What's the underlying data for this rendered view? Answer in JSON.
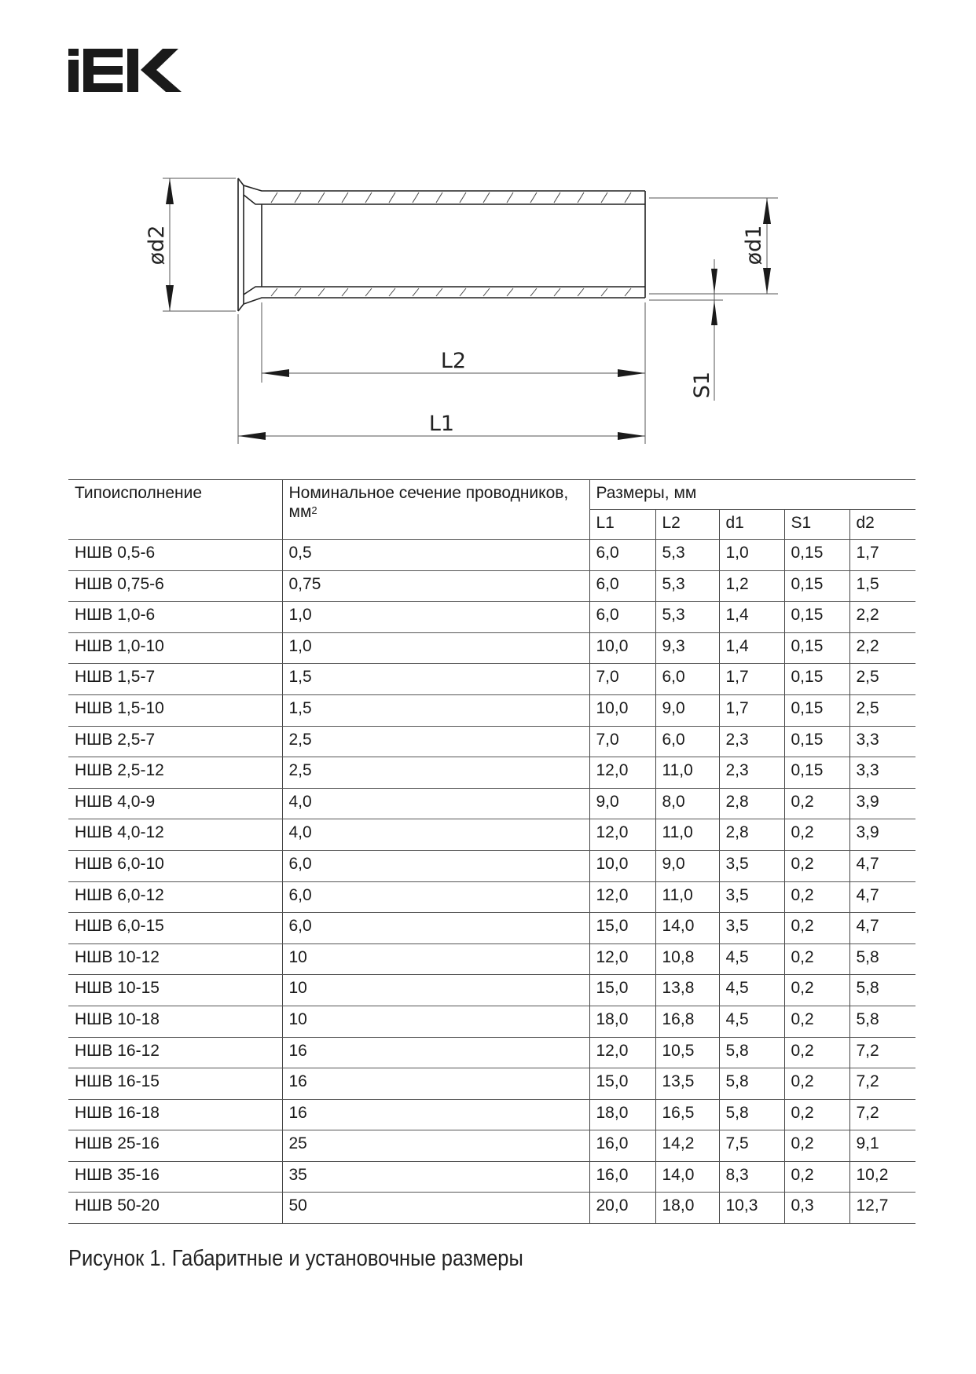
{
  "logo": {
    "text": "IEK",
    "color": "#1a1a1a"
  },
  "drawing": {
    "labels": {
      "d2": "ød2",
      "d1": "ød1",
      "s1": "S1",
      "l2": "L2",
      "l1": "L1"
    }
  },
  "table": {
    "headers": {
      "type": "Типоисполнение",
      "section": "Номинальное сечение проводников, мм",
      "section_sup": "2",
      "dimensions": "Размеры, мм",
      "sub": [
        "L1",
        "L2",
        "d1",
        "S1",
        "d2"
      ]
    },
    "rows": [
      [
        "НШВ 0,5-6",
        "0,5",
        "6,0",
        "5,3",
        "1,0",
        "0,15",
        "1,7"
      ],
      [
        "НШВ 0,75-6",
        "0,75",
        "6,0",
        "5,3",
        "1,2",
        "0,15",
        "1,5"
      ],
      [
        "НШВ 1,0-6",
        "1,0",
        "6,0",
        "5,3",
        "1,4",
        "0,15",
        "2,2"
      ],
      [
        "НШВ 1,0-10",
        "1,0",
        "10,0",
        "9,3",
        "1,4",
        "0,15",
        "2,2"
      ],
      [
        "НШВ 1,5-7",
        "1,5",
        "7,0",
        "6,0",
        "1,7",
        "0,15",
        "2,5"
      ],
      [
        "НШВ 1,5-10",
        "1,5",
        "10,0",
        "9,0",
        "1,7",
        "0,15",
        "2,5"
      ],
      [
        "НШВ 2,5-7",
        "2,5",
        "7,0",
        "6,0",
        "2,3",
        "0,15",
        "3,3"
      ],
      [
        "НШВ 2,5-12",
        "2,5",
        "12,0",
        "11,0",
        "2,3",
        "0,15",
        "3,3"
      ],
      [
        "НШВ 4,0-9",
        "4,0",
        "9,0",
        "8,0",
        "2,8",
        "0,2",
        "3,9"
      ],
      [
        "НШВ 4,0-12",
        "4,0",
        "12,0",
        "11,0",
        "2,8",
        "0,2",
        "3,9"
      ],
      [
        "НШВ 6,0-10",
        "6,0",
        "10,0",
        "9,0",
        "3,5",
        "0,2",
        "4,7"
      ],
      [
        "НШВ 6,0-12",
        "6,0",
        "12,0",
        "11,0",
        "3,5",
        "0,2",
        "4,7"
      ],
      [
        "НШВ 6,0-15",
        "6,0",
        "15,0",
        "14,0",
        "3,5",
        "0,2",
        "4,7"
      ],
      [
        "НШВ 10-12",
        "10",
        "12,0",
        "10,8",
        "4,5",
        "0,2",
        "5,8"
      ],
      [
        "НШВ 10-15",
        "10",
        "15,0",
        "13,8",
        "4,5",
        "0,2",
        "5,8"
      ],
      [
        "НШВ 10-18",
        "10",
        "18,0",
        "16,8",
        "4,5",
        "0,2",
        "5,8"
      ],
      [
        "НШВ 16-12",
        "16",
        "12,0",
        "10,5",
        "5,8",
        "0,2",
        "7,2"
      ],
      [
        "НШВ 16-15",
        "16",
        "15,0",
        "13,5",
        "5,8",
        "0,2",
        "7,2"
      ],
      [
        "НШВ 16-18",
        "16",
        "18,0",
        "16,5",
        "5,8",
        "0,2",
        "7,2"
      ],
      [
        "НШВ 25-16",
        "25",
        "16,0",
        "14,2",
        "7,5",
        "0,2",
        "9,1"
      ],
      [
        "НШВ 35-16",
        "35",
        "16,0",
        "14,0",
        "8,3",
        "0,2",
        "10,2"
      ],
      [
        "НШВ 50-20",
        "50",
        "20,0",
        "18,0",
        "10,3",
        "0,3",
        "12,7"
      ]
    ]
  },
  "caption": "Рисунок 1. Габаритные и установочные размеры"
}
